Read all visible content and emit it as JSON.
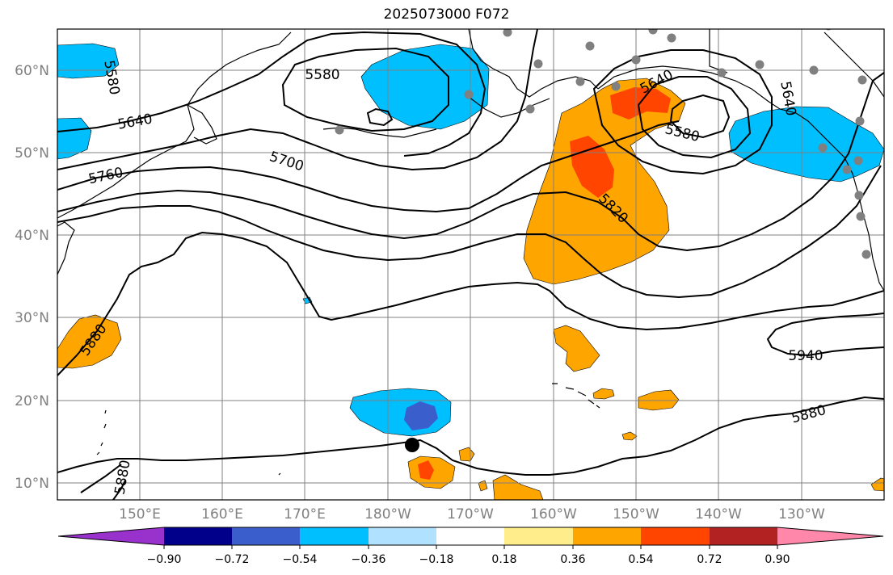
{
  "title": "2025073000 F072",
  "map": {
    "lat_labels": [
      "60°N",
      "50°N",
      "40°N",
      "30°N",
      "20°N",
      "10°N"
    ],
    "lon_labels": [
      "150°E",
      "160°E",
      "170°E",
      "180°W",
      "170°W",
      "160°W",
      "150°W",
      "140°W",
      "130°W"
    ],
    "contour_labels": [
      "5580",
      "5640",
      "5760",
      "5700",
      "5580",
      "5640",
      "5580",
      "5820",
      "5880",
      "5880",
      "5940",
      "5880",
      "5640"
    ],
    "colors": {
      "land_outline": "#000000",
      "gridline": "#808080",
      "station_dot": "#808080",
      "marker": "#000000"
    }
  },
  "colorbar": {
    "ticks": [
      "−0.90",
      "−0.72",
      "−0.54",
      "−0.36",
      "−0.18",
      "0.18",
      "0.36",
      "0.54",
      "0.72",
      "0.90"
    ],
    "colors": [
      "#9932cc",
      "#00008b",
      "#3a5fcd",
      "#00bfff",
      "#b0e2ff",
      "#ffffff",
      "#ffec8b",
      "#ffa500",
      "#ff4500",
      "#b22222",
      "#ff88aa"
    ]
  }
}
